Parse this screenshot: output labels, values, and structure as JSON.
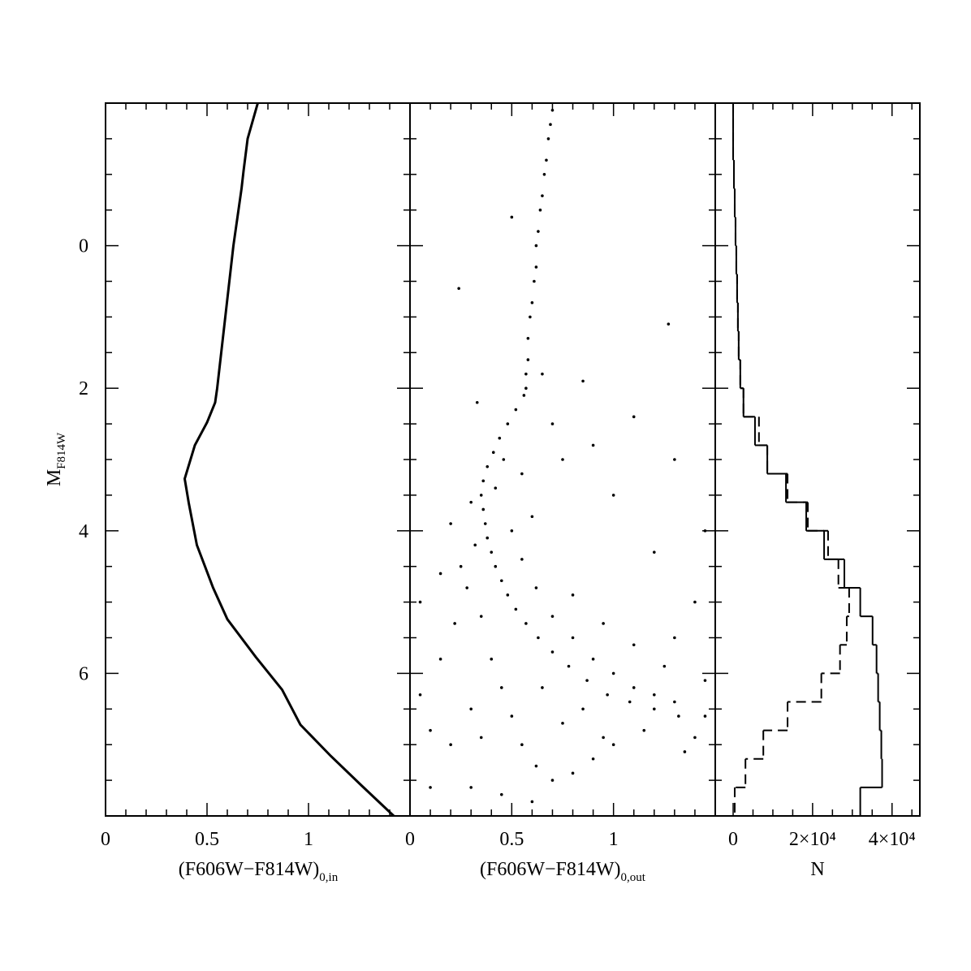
{
  "chart_data": [
    {
      "type": "line",
      "xlabel": "(F606W−F814W)",
      "xlabel_sub": "0,in",
      "ylabel": "M",
      "ylabel_sub": "F814W",
      "x": [
        0.75,
        0.7,
        0.68,
        0.67,
        0.63,
        0.57,
        0.55,
        0.54,
        0.5,
        0.44,
        0.39,
        0.41,
        0.45,
        0.53,
        0.6,
        0.74,
        0.87,
        0.96,
        1.11,
        1.26,
        1.42
      ],
      "y": [
        -2.0,
        -1.5,
        -1.05,
        -0.8,
        0.0,
        1.5,
        2.0,
        2.2,
        2.48,
        2.8,
        3.27,
        3.61,
        4.2,
        4.8,
        5.24,
        5.77,
        6.23,
        6.72,
        7.16,
        7.57,
        8.0
      ],
      "color": "#000000",
      "xlim": [
        0,
        1.5
      ],
      "ylim": [
        8,
        -2
      ],
      "xticks": [
        0,
        0.5,
        1
      ],
      "yticks": [
        0,
        2,
        4,
        6
      ],
      "xminor": [
        0.1,
        0.2,
        0.3,
        0.4,
        0.6,
        0.7,
        0.8,
        0.9,
        1.1,
        1.2,
        1.3,
        1.4
      ],
      "yminor": [
        -1.5,
        -1,
        -0.5,
        0.5,
        1,
        1.5,
        2.5,
        3,
        3.5,
        4.5,
        5,
        5.5,
        6.5,
        7,
        7.5
      ]
    },
    {
      "type": "scatter",
      "xlabel": "(F606W−F814W)",
      "xlabel_sub": "0,out",
      "x": [
        0.7,
        0.69,
        0.68,
        0.67,
        0.66,
        0.65,
        0.64,
        0.63,
        0.62,
        0.62,
        0.61,
        0.6,
        0.59,
        0.58,
        0.58,
        0.57,
        0.57,
        0.56,
        0.5,
        0.24,
        1.27,
        0.52,
        0.48,
        0.44,
        0.41,
        0.38,
        0.36,
        0.35,
        0.36,
        0.37,
        0.38,
        0.4,
        0.42,
        0.45,
        0.48,
        0.52,
        0.57,
        0.63,
        0.7,
        0.78,
        0.87,
        0.97,
        1.08,
        1.2,
        1.32,
        1.45,
        0.3,
        0.42,
        0.32,
        0.5,
        0.28,
        0.55,
        0.35,
        0.62,
        0.4,
        0.7,
        0.45,
        0.8,
        0.5,
        0.9,
        0.55,
        1.0,
        0.62,
        1.1,
        0.7,
        1.2,
        0.8,
        1.3,
        0.9,
        1.4,
        1.0,
        1.35,
        1.15,
        0.3,
        0.2,
        0.1,
        0.05,
        0.15,
        0.22,
        0.25,
        0.3,
        0.45,
        0.6,
        0.1,
        0.35,
        0.75,
        0.65,
        0.85,
        0.95,
        1.25,
        1.1,
        0.95,
        0.8,
        1.3,
        1.45,
        1.4,
        1.2,
        1.0,
        0.9,
        0.7,
        0.75,
        0.6,
        1.1,
        0.85,
        0.33,
        0.2,
        0.15,
        0.05,
        1.3,
        1.45,
        0.65,
        0.55,
        0.46
      ],
      "y": [
        -1.9,
        -1.7,
        -1.5,
        -1.2,
        -1.0,
        -0.7,
        -0.5,
        -0.2,
        0.0,
        0.3,
        0.5,
        0.8,
        1.0,
        1.3,
        1.6,
        1.8,
        2.0,
        2.1,
        -0.4,
        0.6,
        1.1,
        2.3,
        2.5,
        2.7,
        2.9,
        3.1,
        3.3,
        3.5,
        3.7,
        3.9,
        4.1,
        4.3,
        4.5,
        4.7,
        4.9,
        5.1,
        5.3,
        5.5,
        5.7,
        5.9,
        6.1,
        6.3,
        6.4,
        6.5,
        6.6,
        6.6,
        3.6,
        3.4,
        4.2,
        4.0,
        4.8,
        4.4,
        5.2,
        4.8,
        5.8,
        5.2,
        6.2,
        5.5,
        6.6,
        5.8,
        7.0,
        6.0,
        7.3,
        6.2,
        7.5,
        6.3,
        7.4,
        6.4,
        7.2,
        6.9,
        7.0,
        7.1,
        6.8,
        6.5,
        7.0,
        6.8,
        6.3,
        5.8,
        5.3,
        4.5,
        7.6,
        7.7,
        7.8,
        7.6,
        6.9,
        6.7,
        6.2,
        6.5,
        6.9,
        5.9,
        5.6,
        5.3,
        4.9,
        5.5,
        6.1,
        5.0,
        4.3,
        3.5,
        2.8,
        2.5,
        3.0,
        3.8,
        2.4,
        1.9,
        2.2,
        3.9,
        4.6,
        5.0,
        3.0,
        4.0,
        1.8,
        3.2,
        3.0
      ],
      "color": "#000000",
      "xlim": [
        0,
        1.5
      ],
      "xticks": [
        0,
        0.5,
        1
      ],
      "xminor": [
        0.1,
        0.2,
        0.3,
        0.4,
        0.6,
        0.7,
        0.8,
        0.9,
        1.1,
        1.2,
        1.3,
        1.4
      ]
    },
    {
      "type": "histogram",
      "xlabel": "N",
      "bins": [
        -2,
        -1.6,
        -1.2,
        -0.8,
        -0.4,
        0,
        0.4,
        0.8,
        1.2,
        1.6,
        2,
        2.4,
        2.8,
        3.2,
        3.6,
        4,
        4.4,
        4.8,
        5.2,
        5.6,
        6,
        6.4,
        6.8,
        7.2,
        7.6,
        8
      ],
      "series": [
        {
          "color": "#000000",
          "dash": false,
          "values": [
            0,
            0,
            200,
            400,
            600,
            800,
            1000,
            1200,
            1400,
            1800,
            2600,
            5500,
            8600,
            13300,
            18400,
            22900,
            28000,
            32000,
            35100,
            36100,
            36500,
            36900,
            37300,
            37500,
            32000
          ]
        },
        {
          "color": "#000000",
          "dash": true,
          "values": [
            0,
            0,
            200,
            400,
            600,
            800,
            1000,
            1200,
            1400,
            1800,
            2600,
            6500,
            8600,
            13700,
            18800,
            23900,
            26500,
            29200,
            28600,
            26900,
            22200,
            13700,
            7600,
            3100,
            400
          ]
        }
      ],
      "xlim": [
        -4500,
        47000
      ],
      "xticks": [
        0,
        {
          "value": 20000,
          "label": "2×10⁴"
        },
        {
          "value": 40000,
          "label": "4×10⁴"
        }
      ],
      "xminor": [
        5000,
        10000,
        15000,
        25000,
        30000,
        35000,
        45000
      ]
    }
  ]
}
